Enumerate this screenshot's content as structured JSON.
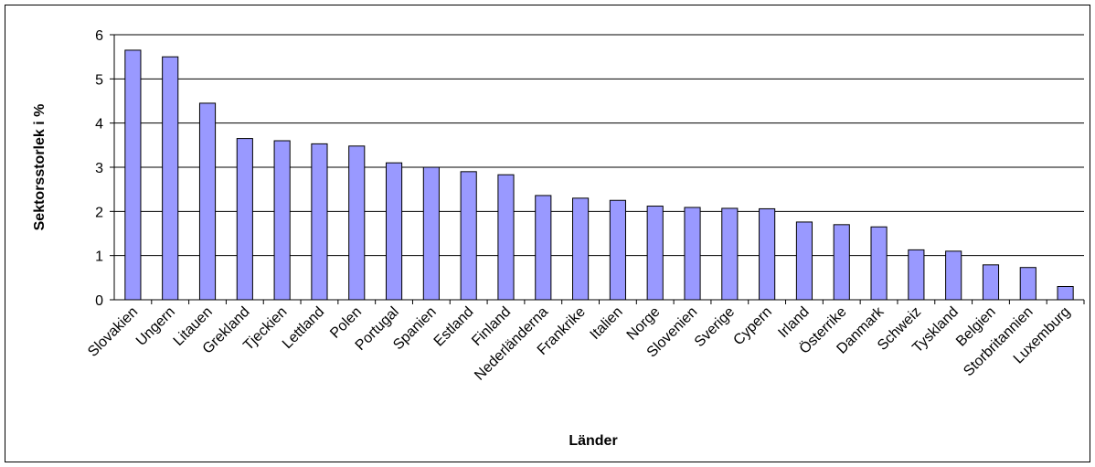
{
  "chart_data": {
    "type": "bar",
    "xlabel": "Länder",
    "ylabel": "Sektorsstorlek i %",
    "ylim": [
      0,
      6
    ],
    "yticks": [
      0,
      1,
      2,
      3,
      4,
      5,
      6
    ],
    "grid": "horizontal",
    "legend": "none",
    "bar_color": "#9999ff",
    "categories": [
      "Slovakien",
      "Ungern",
      "Litauen",
      "Grekland",
      "Tjeckien",
      "Lettland",
      "Polen",
      "Portugal",
      "Spanien",
      "Estland",
      "Finland",
      "Nederländerna",
      "Frankrike",
      "Italien",
      "Norge",
      "Slovenien",
      "Sverige",
      "Cypern",
      "Irland",
      "Österrike",
      "Danmark",
      "Schweiz",
      "Tyskland",
      "Belgien",
      "Storbritannien",
      "Luxemburg"
    ],
    "values": [
      5.65,
      5.5,
      4.45,
      3.65,
      3.6,
      3.53,
      3.48,
      3.1,
      3.0,
      2.9,
      2.83,
      2.36,
      2.3,
      2.25,
      2.12,
      2.09,
      2.07,
      2.06,
      1.76,
      1.7,
      1.65,
      1.13,
      1.1,
      0.79,
      0.73,
      0.3
    ]
  }
}
